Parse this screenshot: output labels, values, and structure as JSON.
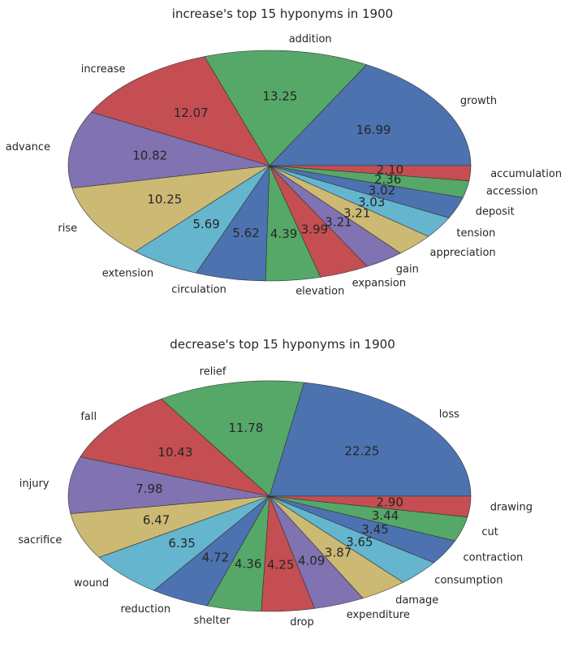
{
  "palette": [
    "#4c72b0",
    "#55a868",
    "#c44e52",
    "#8172b2",
    "#ccb974",
    "#64b5cd"
  ],
  "chart_data": [
    {
      "type": "pie",
      "title": "increase's top 15 hyponyms in 1900",
      "categories": [
        "growth",
        "addition",
        "increase",
        "advance",
        "rise",
        "extension",
        "circulation",
        "elevation",
        "expansion",
        "gain",
        "appreciation",
        "tension",
        "deposit",
        "accession",
        "accumulation"
      ],
      "values": [
        16.99,
        13.25,
        12.07,
        10.82,
        10.25,
        5.69,
        5.62,
        4.39,
        3.99,
        3.21,
        3.21,
        3.03,
        3.02,
        2.36,
        2.1
      ],
      "value_labels": [
        "16.99",
        "13.25",
        "12.07",
        "10.82",
        "10.25",
        "5.69",
        "5.62",
        "4.39",
        "3.99",
        "3.21",
        "3.21",
        "3.03",
        "3.02",
        "2.36",
        "2.10"
      ]
    },
    {
      "type": "pie",
      "title": "decrease's top 15 hyponyms in 1900",
      "categories": [
        "loss",
        "relief",
        "fall",
        "injury",
        "sacrifice",
        "wound",
        "reduction",
        "shelter",
        "drop",
        "expenditure",
        "damage",
        "consumption",
        "contraction",
        "cut",
        "drawing"
      ],
      "values": [
        22.25,
        11.78,
        10.43,
        7.98,
        6.47,
        6.35,
        4.72,
        4.36,
        4.25,
        4.09,
        3.87,
        3.65,
        3.45,
        3.44,
        2.9
      ],
      "value_labels": [
        "22.25",
        "11.78",
        "10.43",
        "7.98",
        "6.47",
        "6.35",
        "4.72",
        "4.36",
        "4.25",
        "4.09",
        "3.87",
        "3.65",
        "3.45",
        "3.44",
        "2.90"
      ]
    }
  ]
}
